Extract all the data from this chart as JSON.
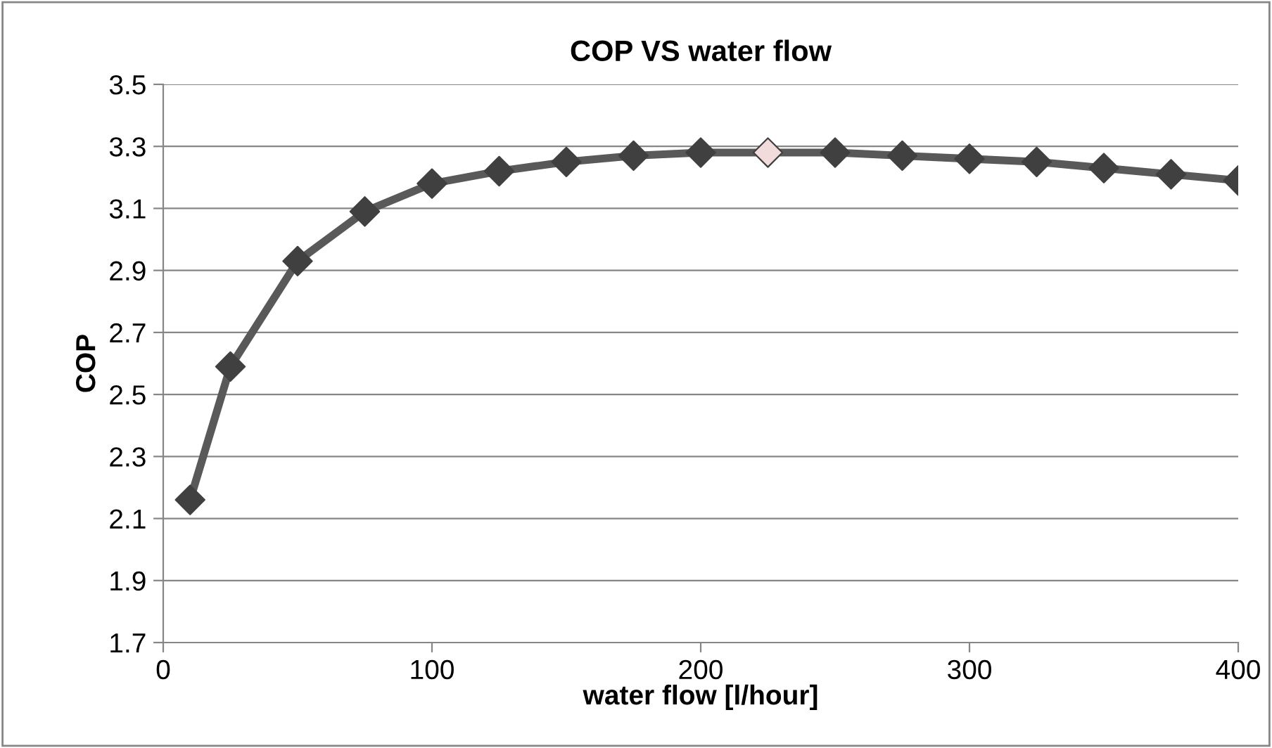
{
  "chart_data": {
    "type": "line",
    "title": "COP VS water flow",
    "xlabel": "water flow [l/hour]",
    "ylabel": "COP",
    "x": [
      10,
      25,
      50,
      75,
      100,
      125,
      150,
      175,
      200,
      225,
      250,
      275,
      300,
      325,
      350,
      375,
      400
    ],
    "series": [
      {
        "color": "#595959",
        "colors": [
          "#404040",
          "#404040",
          "#404040",
          "#404040",
          "#404040",
          "#404040",
          "#404040",
          "#404040",
          "#404040",
          "#f2dcdb",
          "#404040",
          "#404040",
          "#404040",
          "#404040",
          "#404040",
          "#404040",
          "#404040"
        ],
        "values": [
          2.16,
          2.59,
          2.93,
          3.09,
          3.18,
          3.22,
          3.25,
          3.27,
          3.28,
          3.28,
          3.28,
          3.27,
          3.26,
          3.25,
          3.23,
          3.21,
          3.19
        ]
      }
    ],
    "xlim": [
      0,
      400
    ],
    "xticks": [
      0,
      100,
      200,
      300,
      400
    ],
    "ylim": [
      1.7,
      3.5
    ],
    "yticks": [
      {
        "value": 1.7,
        "label": "1.7"
      },
      {
        "value": 1.9,
        "label": "1.9"
      },
      {
        "value": 2.1,
        "label": "2.1"
      },
      {
        "value": 2.3,
        "label": "2.3"
      },
      {
        "value": 2.5,
        "label": "2.5"
      },
      {
        "value": 2.7,
        "label": "2.7"
      },
      {
        "value": 2.9,
        "label": "2.9"
      },
      {
        "value": 3.1,
        "label": "3.1"
      },
      {
        "value": 3.3,
        "label": "3.3"
      },
      {
        "value": 3.5,
        "label": "3.5"
      }
    ],
    "grid": "y",
    "marker": "diamond",
    "line_style": "solid",
    "legend": false
  }
}
